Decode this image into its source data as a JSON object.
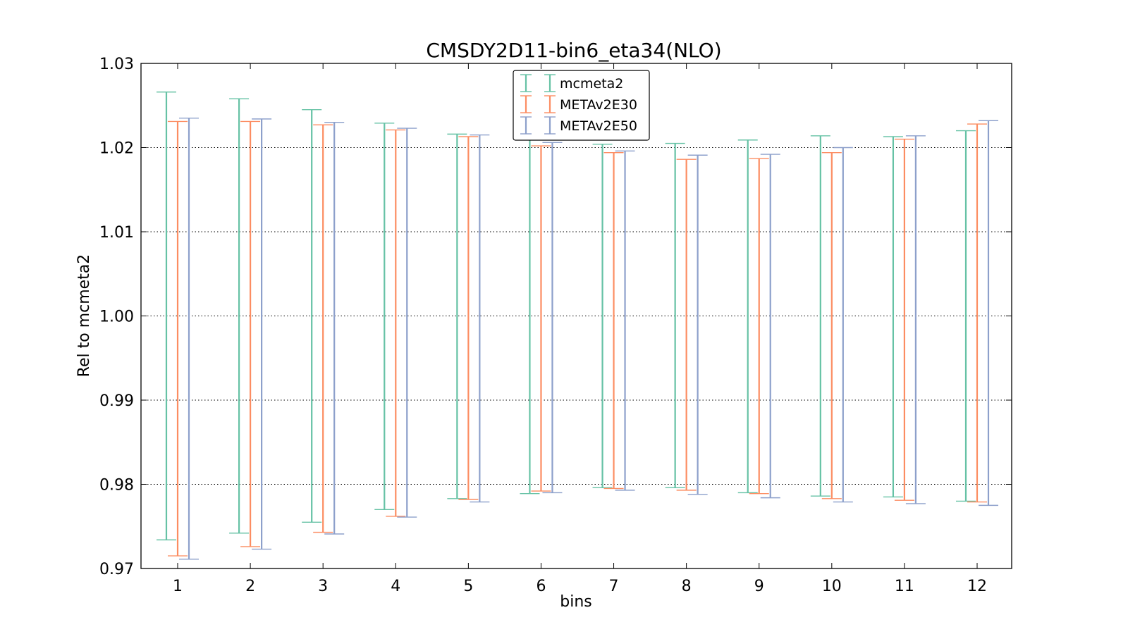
{
  "chart_data": {
    "type": "errorbar",
    "title": "CMSDY2D11-bin6_eta34(NLO)",
    "xlabel": "bins",
    "ylabel": "Rel to mcmeta2",
    "categories": [
      "1",
      "2",
      "3",
      "4",
      "5",
      "6",
      "7",
      "8",
      "9",
      "10",
      "11",
      "12"
    ],
    "ylim": [
      0.97,
      1.03
    ],
    "yticks": [
      "0.97",
      "0.98",
      "0.99",
      "1.00",
      "1.01",
      "1.02",
      "1.03"
    ],
    "grid": "y-dotted",
    "legend_position": "top-center",
    "series": [
      {
        "name": "mcmeta2",
        "color": "#66c2a5",
        "lower": [
          0.9734,
          0.9742,
          0.9755,
          0.977,
          0.9783,
          0.9789,
          0.9796,
          0.9796,
          0.979,
          0.9786,
          0.9785,
          0.978
        ],
        "upper": [
          1.0266,
          1.0258,
          1.0245,
          1.0229,
          1.0216,
          1.0211,
          1.0204,
          1.0205,
          1.0209,
          1.0214,
          1.0213,
          1.022
        ]
      },
      {
        "name": "METAv2E30",
        "color": "#fc8d62",
        "lower": [
          0.9715,
          0.9726,
          0.9743,
          0.9762,
          0.9782,
          0.9792,
          0.9795,
          0.9793,
          0.9789,
          0.9783,
          0.9781,
          0.9779
        ],
        "upper": [
          1.0231,
          1.0231,
          1.0227,
          1.0221,
          1.0213,
          1.0202,
          1.0194,
          1.0186,
          1.0187,
          1.0194,
          1.021,
          1.0228
        ]
      },
      {
        "name": "METAv2E50",
        "color": "#8da0cb",
        "lower": [
          0.9711,
          0.9723,
          0.9741,
          0.9761,
          0.9779,
          0.979,
          0.9793,
          0.9788,
          0.9784,
          0.9779,
          0.9777,
          0.9775
        ],
        "upper": [
          1.0235,
          1.0234,
          1.023,
          1.0223,
          1.0215,
          1.0206,
          1.0196,
          1.0191,
          1.0192,
          1.02,
          1.0214,
          1.0232
        ]
      }
    ]
  }
}
